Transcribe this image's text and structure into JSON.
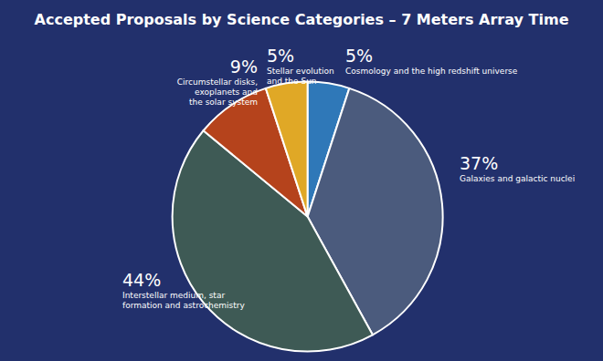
{
  "chart_data": {
    "type": "pie",
    "title": "Accepted Proposals by Science Categories – 7 Meters Array Time",
    "categories": [
      "Cosmology and the high redshift universe",
      "Galaxies and galactic nuclei",
      "Interstellar medium, star\nformation and astrochemistry",
      "Circumstellar disks,\nexoplanets and\nthe solar system",
      "Stellar evolution\nand the Sun"
    ],
    "values": [
      5,
      37,
      44,
      9,
      5
    ],
    "value_labels": [
      "5%",
      "37%",
      "44%",
      "9%",
      "5%"
    ],
    "colors": [
      "#2f78b8",
      "#4b5b7d",
      "#3e5a55",
      "#b5431c",
      "#e0a826"
    ],
    "data_labels": true
  }
}
